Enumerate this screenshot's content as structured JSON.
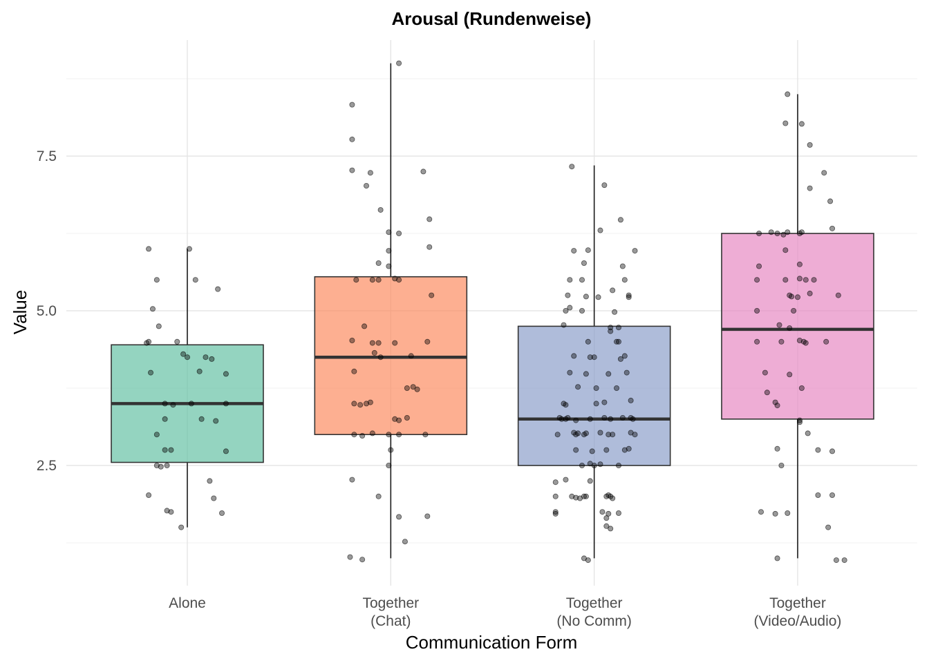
{
  "chart_data": {
    "type": "box",
    "title": "Arousal (Rundenweise)",
    "xlabel": "Communication Form",
    "ylabel": "Value",
    "ylim": [
      0.75,
      9.25
    ],
    "yticks": [
      2.5,
      5.0,
      7.5
    ],
    "ytick_labels": [
      "2.5",
      "5.0",
      "7.5"
    ],
    "grid": true,
    "categories": [
      {
        "lines": [
          "Alone"
        ]
      },
      {
        "lines": [
          "Together",
          "(Chat)"
        ]
      },
      {
        "lines": [
          "Together",
          "(No Comm)"
        ]
      },
      {
        "lines": [
          "Together",
          "(Video/Audio)"
        ]
      }
    ],
    "boxes": [
      {
        "min": 1.5,
        "q1": 2.55,
        "median": 3.5,
        "q3": 4.45,
        "max": 6.0,
        "color": "#66c2a5"
      },
      {
        "min": 1.0,
        "q1": 3.0,
        "median": 4.25,
        "q3": 5.55,
        "max": 9.0,
        "color": "#fc8d62"
      },
      {
        "min": 1.0,
        "q1": 2.5,
        "median": 3.25,
        "q3": 4.75,
        "max": 7.35,
        "color": "#8da0cb"
      },
      {
        "min": 1.0,
        "q1": 3.25,
        "median": 4.7,
        "q3": 6.25,
        "max": 8.5,
        "color": "#e78ac3"
      }
    ],
    "points": [
      [
        [
          -0.19,
          6.0
        ],
        [
          0.01,
          6.0
        ],
        [
          0.15,
          5.35
        ],
        [
          -0.15,
          5.5
        ],
        [
          0.04,
          5.5
        ],
        [
          -0.17,
          5.03
        ],
        [
          -0.14,
          4.75
        ],
        [
          -0.19,
          4.5
        ],
        [
          -0.05,
          4.5
        ],
        [
          -0.2,
          4.48
        ],
        [
          -0.02,
          4.3
        ],
        [
          0.0,
          4.25
        ],
        [
          0.09,
          4.25
        ],
        [
          0.12,
          4.22
        ],
        [
          0.06,
          4.02
        ],
        [
          -0.18,
          4.0
        ],
        [
          0.19,
          3.98
        ],
        [
          -0.11,
          3.5
        ],
        [
          -0.07,
          3.48
        ],
        [
          0.02,
          3.5
        ],
        [
          0.19,
          3.5
        ],
        [
          -0.11,
          3.25
        ],
        [
          0.07,
          3.25
        ],
        [
          0.14,
          3.22
        ],
        [
          -0.15,
          3.0
        ],
        [
          -0.15,
          2.5
        ],
        [
          -0.13,
          2.48
        ],
        [
          -0.1,
          2.5
        ],
        [
          -0.08,
          2.75
        ],
        [
          -0.11,
          2.75
        ],
        [
          0.19,
          2.73
        ],
        [
          0.11,
          2.25
        ],
        [
          -0.19,
          2.02
        ],
        [
          0.13,
          1.97
        ],
        [
          -0.1,
          1.77
        ],
        [
          -0.08,
          1.75
        ],
        [
          0.17,
          1.73
        ],
        [
          -0.03,
          1.5
        ]
      ],
      [
        [
          0.04,
          9.0
        ],
        [
          -0.19,
          8.33
        ],
        [
          -0.19,
          7.77
        ],
        [
          -0.19,
          7.27
        ],
        [
          -0.1,
          7.23
        ],
        [
          0.16,
          7.25
        ],
        [
          -0.12,
          7.02
        ],
        [
          -0.05,
          6.63
        ],
        [
          0.19,
          6.48
        ],
        [
          -0.01,
          6.27
        ],
        [
          0.04,
          6.25
        ],
        [
          0.19,
          6.03
        ],
        [
          -0.01,
          5.97
        ],
        [
          -0.06,
          5.77
        ],
        [
          -0.01,
          5.72
        ],
        [
          -0.17,
          5.5
        ],
        [
          -0.09,
          5.5
        ],
        [
          -0.06,
          5.5
        ],
        [
          0.02,
          5.52
        ],
        [
          0.04,
          5.5
        ],
        [
          0.2,
          5.25
        ],
        [
          -0.13,
          4.75
        ],
        [
          -0.19,
          4.52
        ],
        [
          -0.06,
          4.48
        ],
        [
          -0.09,
          4.48
        ],
        [
          0.02,
          4.48
        ],
        [
          0.18,
          4.5
        ],
        [
          -0.08,
          4.32
        ],
        [
          -0.05,
          4.25
        ],
        [
          0.1,
          4.27
        ],
        [
          -0.18,
          4.02
        ],
        [
          0.08,
          3.75
        ],
        [
          0.11,
          3.77
        ],
        [
          0.13,
          3.73
        ],
        [
          -0.18,
          3.5
        ],
        [
          -0.15,
          3.48
        ],
        [
          -0.12,
          3.5
        ],
        [
          -0.1,
          3.52
        ],
        [
          0.02,
          3.25
        ],
        [
          0.04,
          3.23
        ],
        [
          0.08,
          3.27
        ],
        [
          -0.18,
          3.0
        ],
        [
          -0.14,
          2.98
        ],
        [
          -0.09,
          3.02
        ],
        [
          -0.01,
          3.0
        ],
        [
          0.04,
          3.0
        ],
        [
          0.17,
          3.0
        ],
        [
          0.0,
          2.75
        ],
        [
          -0.01,
          2.5
        ],
        [
          -0.19,
          2.27
        ],
        [
          -0.06,
          2.0
        ],
        [
          0.04,
          1.67
        ],
        [
          0.18,
          1.68
        ],
        [
          0.07,
          1.27
        ],
        [
          -0.2,
          1.02
        ],
        [
          -0.14,
          0.98
        ]
      ],
      [
        [
          -0.11,
          7.33
        ],
        [
          0.05,
          7.03
        ],
        [
          0.03,
          6.3
        ],
        [
          0.13,
          6.47
        ],
        [
          -0.1,
          5.97
        ],
        [
          -0.03,
          5.98
        ],
        [
          0.2,
          5.97
        ],
        [
          0.14,
          5.72
        ],
        [
          -0.05,
          5.77
        ],
        [
          -0.12,
          5.5
        ],
        [
          -0.06,
          5.5
        ],
        [
          0.15,
          5.5
        ],
        [
          0.09,
          5.33
        ],
        [
          -0.13,
          5.25
        ],
        [
          -0.12,
          5.05
        ],
        [
          -0.14,
          5.0
        ],
        [
          -0.06,
          5.0
        ],
        [
          -0.04,
          5.23
        ],
        [
          0.02,
          5.22
        ],
        [
          0.17,
          5.22
        ],
        [
          0.17,
          5.25
        ],
        [
          0.1,
          4.98
        ],
        [
          -0.15,
          4.77
        ],
        [
          0.08,
          4.73
        ],
        [
          0.12,
          4.73
        ],
        [
          0.08,
          4.67
        ],
        [
          -0.03,
          4.5
        ],
        [
          0.11,
          4.5
        ],
        [
          0.12,
          4.5
        ],
        [
          0.15,
          4.27
        ],
        [
          0.13,
          4.22
        ],
        [
          -0.1,
          4.27
        ],
        [
          0.0,
          4.25
        ],
        [
          -0.02,
          4.25
        ],
        [
          0.16,
          4.0
        ],
        [
          -0.12,
          4.0
        ],
        [
          -0.04,
          3.98
        ],
        [
          0.07,
          3.98
        ],
        [
          -0.08,
          3.77
        ],
        [
          0.11,
          3.75
        ],
        [
          0.01,
          3.75
        ],
        [
          0.05,
          3.52
        ],
        [
          0.18,
          3.55
        ],
        [
          -0.15,
          3.5
        ],
        [
          -0.14,
          3.48
        ],
        [
          0.01,
          3.5
        ],
        [
          -0.14,
          3.25
        ],
        [
          -0.13,
          3.27
        ],
        [
          -0.16,
          3.25
        ],
        [
          -0.17,
          3.27
        ],
        [
          -0.09,
          3.23
        ],
        [
          -0.02,
          3.25
        ],
        [
          0.05,
          3.27
        ],
        [
          0.08,
          3.25
        ],
        [
          0.14,
          3.27
        ],
        [
          0.19,
          3.25
        ],
        [
          0.18,
          3.27
        ],
        [
          -0.18,
          3.0
        ],
        [
          -0.1,
          3.03
        ],
        [
          -0.09,
          3.0
        ],
        [
          -0.08,
          3.02
        ],
        [
          -0.05,
          3.0
        ],
        [
          -0.04,
          3.02
        ],
        [
          0.03,
          3.03
        ],
        [
          0.07,
          3.0
        ],
        [
          0.09,
          3.0
        ],
        [
          0.18,
          3.03
        ],
        [
          0.2,
          3.0
        ],
        [
          0.15,
          2.75
        ],
        [
          0.17,
          2.77
        ],
        [
          0.06,
          2.75
        ],
        [
          -0.01,
          2.73
        ],
        [
          -0.09,
          2.75
        ],
        [
          -0.06,
          2.5
        ],
        [
          -0.02,
          2.53
        ],
        [
          0.0,
          2.5
        ],
        [
          0.03,
          2.52
        ],
        [
          0.12,
          2.5
        ],
        [
          -0.19,
          2.23
        ],
        [
          -0.14,
          2.27
        ],
        [
          -0.02,
          2.25
        ],
        [
          -0.19,
          2.0
        ],
        [
          -0.11,
          2.0
        ],
        [
          -0.09,
          1.98
        ],
        [
          -0.05,
          2.0
        ],
        [
          -0.04,
          2.0
        ],
        [
          -0.07,
          1.97
        ],
        [
          0.06,
          2.0
        ],
        [
          0.07,
          2.02
        ],
        [
          0.09,
          1.97
        ],
        [
          0.08,
          2.0
        ],
        [
          -0.19,
          1.75
        ],
        [
          -0.19,
          1.72
        ],
        [
          0.04,
          1.75
        ],
        [
          0.07,
          1.72
        ],
        [
          0.12,
          1.73
        ],
        [
          0.06,
          1.65
        ],
        [
          0.06,
          1.52
        ],
        [
          0.08,
          1.48
        ],
        [
          -0.05,
          1.0
        ],
        [
          -0.03,
          0.97
        ]
      ],
      [
        [
          -0.05,
          8.5
        ],
        [
          -0.06,
          8.03
        ],
        [
          0.02,
          8.02
        ],
        [
          0.06,
          7.68
        ],
        [
          0.13,
          7.23
        ],
        [
          0.06,
          6.98
        ],
        [
          0.16,
          6.77
        ],
        [
          0.17,
          6.33
        ],
        [
          -0.19,
          6.25
        ],
        [
          -0.13,
          6.27
        ],
        [
          -0.1,
          6.25
        ],
        [
          -0.07,
          6.23
        ],
        [
          -0.05,
          6.27
        ],
        [
          0.01,
          6.25
        ],
        [
          0.02,
          6.27
        ],
        [
          -0.06,
          5.98
        ],
        [
          0.01,
          5.75
        ],
        [
          -0.19,
          5.72
        ],
        [
          -0.2,
          5.5
        ],
        [
          -0.06,
          5.5
        ],
        [
          0.01,
          5.52
        ],
        [
          0.04,
          5.5
        ],
        [
          0.08,
          5.5
        ],
        [
          -0.04,
          5.25
        ],
        [
          -0.03,
          5.23
        ],
        [
          0.0,
          5.22
        ],
        [
          0.06,
          5.28
        ],
        [
          0.2,
          5.25
        ],
        [
          -0.2,
          5.0
        ],
        [
          -0.02,
          5.0
        ],
        [
          -0.09,
          4.77
        ],
        [
          -0.04,
          4.72
        ],
        [
          -0.08,
          4.5
        ],
        [
          0.03,
          4.5
        ],
        [
          -0.2,
          4.5
        ],
        [
          0.01,
          4.52
        ],
        [
          0.04,
          4.48
        ],
        [
          0.14,
          4.5
        ],
        [
          -0.16,
          4.0
        ],
        [
          -0.04,
          3.97
        ],
        [
          0.02,
          3.75
        ],
        [
          -0.15,
          3.68
        ],
        [
          -0.11,
          3.52
        ],
        [
          -0.1,
          3.47
        ],
        [
          0.01,
          3.23
        ],
        [
          0.01,
          3.2
        ],
        [
          0.05,
          3.02
        ],
        [
          0.1,
          2.75
        ],
        [
          0.17,
          2.73
        ],
        [
          -0.1,
          2.77
        ],
        [
          -0.08,
          2.5
        ],
        [
          -0.18,
          1.75
        ],
        [
          -0.05,
          1.73
        ],
        [
          -0.11,
          1.72
        ],
        [
          0.1,
          2.02
        ],
        [
          0.17,
          2.02
        ],
        [
          0.15,
          1.5
        ],
        [
          -0.1,
          1.0
        ],
        [
          0.19,
          0.97
        ],
        [
          0.23,
          0.97
        ]
      ]
    ]
  }
}
